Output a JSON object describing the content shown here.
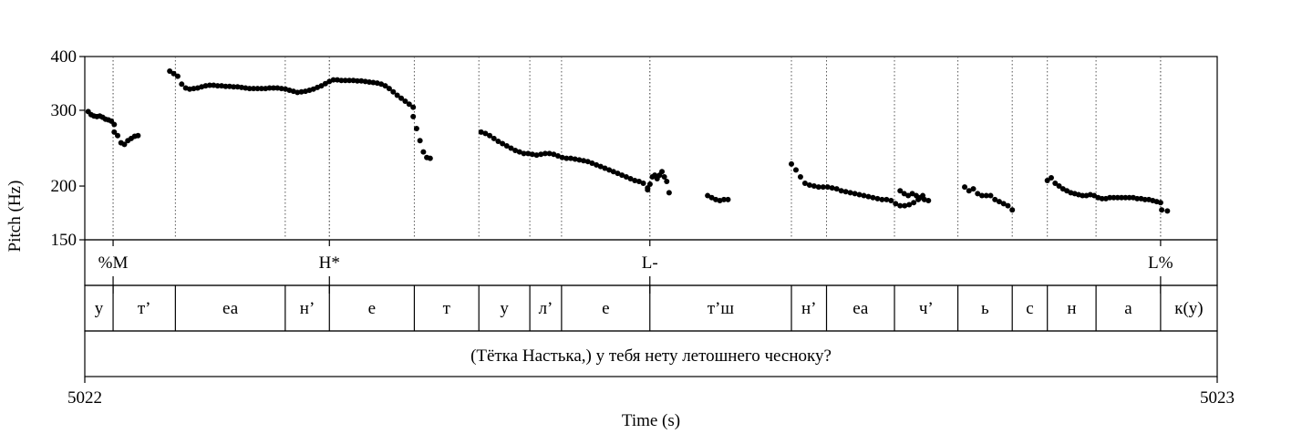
{
  "chart_data": {
    "type": "scatter",
    "xlabel": "Time (s)",
    "ylabel": "Pitch (Hz)",
    "x_start_label": "5022",
    "x_end_label": "5023",
    "xlim": [
      0,
      1
    ],
    "ylim": [
      150,
      400
    ],
    "y_scale": "log",
    "y_ticks": [
      "150",
      "200",
      "300",
      "400"
    ],
    "tone_tier": [
      {
        "label": "%M",
        "t": 0.025
      },
      {
        "label": "H*",
        "t": 0.216
      },
      {
        "label": "L-",
        "t": 0.499
      },
      {
        "label": "L%",
        "t": 0.95
      }
    ],
    "segments": [
      {
        "label": "у",
        "start": 0.0,
        "end": 0.025
      },
      {
        "label": "т’",
        "start": 0.025,
        "end": 0.08
      },
      {
        "label": "еа",
        "start": 0.08,
        "end": 0.177
      },
      {
        "label": "н’",
        "start": 0.177,
        "end": 0.216
      },
      {
        "label": "е",
        "start": 0.216,
        "end": 0.291
      },
      {
        "label": "т",
        "start": 0.291,
        "end": 0.348
      },
      {
        "label": "у",
        "start": 0.348,
        "end": 0.393
      },
      {
        "label": "л’",
        "start": 0.393,
        "end": 0.421
      },
      {
        "label": "е",
        "start": 0.421,
        "end": 0.499
      },
      {
        "label": "т’ш",
        "start": 0.499,
        "end": 0.624
      },
      {
        "label": "н’",
        "start": 0.624,
        "end": 0.655
      },
      {
        "label": "еа",
        "start": 0.655,
        "end": 0.715
      },
      {
        "label": "ч’",
        "start": 0.715,
        "end": 0.771
      },
      {
        "label": "ь",
        "start": 0.771,
        "end": 0.819
      },
      {
        "label": "с",
        "start": 0.819,
        "end": 0.85
      },
      {
        "label": "н",
        "start": 0.85,
        "end": 0.893
      },
      {
        "label": "а",
        "start": 0.893,
        "end": 0.95
      },
      {
        "label": "к(у)",
        "start": 0.95,
        "end": 1.0
      }
    ],
    "sentence": "(Тётка Настька,) у тебя нету летошнего чесноку?",
    "pitch_runs": [
      {
        "t0": 0.003,
        "t1": 0.026,
        "f": [
          298,
          293,
          291,
          290,
          291,
          289,
          286,
          285,
          283,
          278
        ]
      },
      {
        "t0": 0.026,
        "t1": 0.047,
        "f": [
          267,
          262,
          252,
          250,
          255,
          258,
          261,
          262
        ]
      },
      {
        "t0": 0.075,
        "t1": 0.29,
        "f": [
          370,
          365,
          360,
          345,
          338,
          336,
          337,
          338,
          340,
          342,
          343,
          343,
          342,
          342,
          341,
          341,
          340,
          340,
          339,
          338,
          337,
          337,
          337,
          337,
          337,
          338,
          338,
          338,
          337,
          336,
          334,
          332,
          330,
          331,
          332,
          334,
          336,
          339,
          342,
          346,
          350,
          353,
          353,
          352,
          352,
          352,
          352,
          351,
          351,
          350,
          349,
          348,
          347,
          345,
          342,
          337,
          331,
          325,
          320,
          315,
          310,
          305
        ]
      },
      {
        "t0": 0.29,
        "t1": 0.305,
        "f": [
          290,
          272,
          255,
          240,
          233,
          232
        ]
      },
      {
        "t0": 0.35,
        "t1": 0.497,
        "f": [
          267,
          265,
          262,
          258,
          254,
          251,
          248,
          245,
          242,
          240,
          238,
          238,
          237,
          236,
          237,
          238,
          238,
          237,
          235,
          233,
          232,
          232,
          231,
          230,
          229,
          228,
          226,
          224,
          222,
          220,
          218,
          216,
          214,
          212,
          210,
          208,
          206,
          205,
          203,
          198
        ]
      },
      {
        "t0": 0.497,
        "t1": 0.516,
        "f": [
          196,
          202,
          210,
          212,
          208,
          212,
          216,
          210,
          205,
          193
        ]
      },
      {
        "t0": 0.55,
        "t1": 0.568,
        "f": [
          190,
          188,
          186,
          185,
          186,
          186
        ]
      },
      {
        "t0": 0.624,
        "t1": 0.74,
        "f": [
          225,
          218,
          210,
          203,
          201,
          200,
          199,
          199,
          199,
          198,
          197,
          195,
          194,
          193,
          192,
          191,
          190,
          189,
          188,
          187,
          186,
          186,
          185,
          182,
          180,
          180,
          181,
          183,
          186,
          190
        ]
      },
      {
        "t0": 0.72,
        "t1": 0.745,
        "f": [
          195,
          192,
          190,
          192,
          190,
          188,
          186,
          185
        ]
      },
      {
        "t0": 0.777,
        "t1": 0.819,
        "f": [
          199,
          195,
          197,
          192,
          190,
          190,
          190,
          186,
          184,
          182,
          180,
          176
        ]
      },
      {
        "t0": 0.85,
        "t1": 0.95,
        "f": [
          206,
          209,
          203,
          200,
          197,
          195,
          193,
          192,
          191,
          190,
          190,
          191,
          190,
          188,
          187,
          187,
          188,
          188,
          188,
          188,
          188,
          188,
          188,
          187,
          187,
          186,
          186,
          185,
          184,
          183
        ]
      },
      {
        "t0": 0.951,
        "t1": 0.956,
        "f": [
          176,
          175
        ]
      }
    ]
  }
}
